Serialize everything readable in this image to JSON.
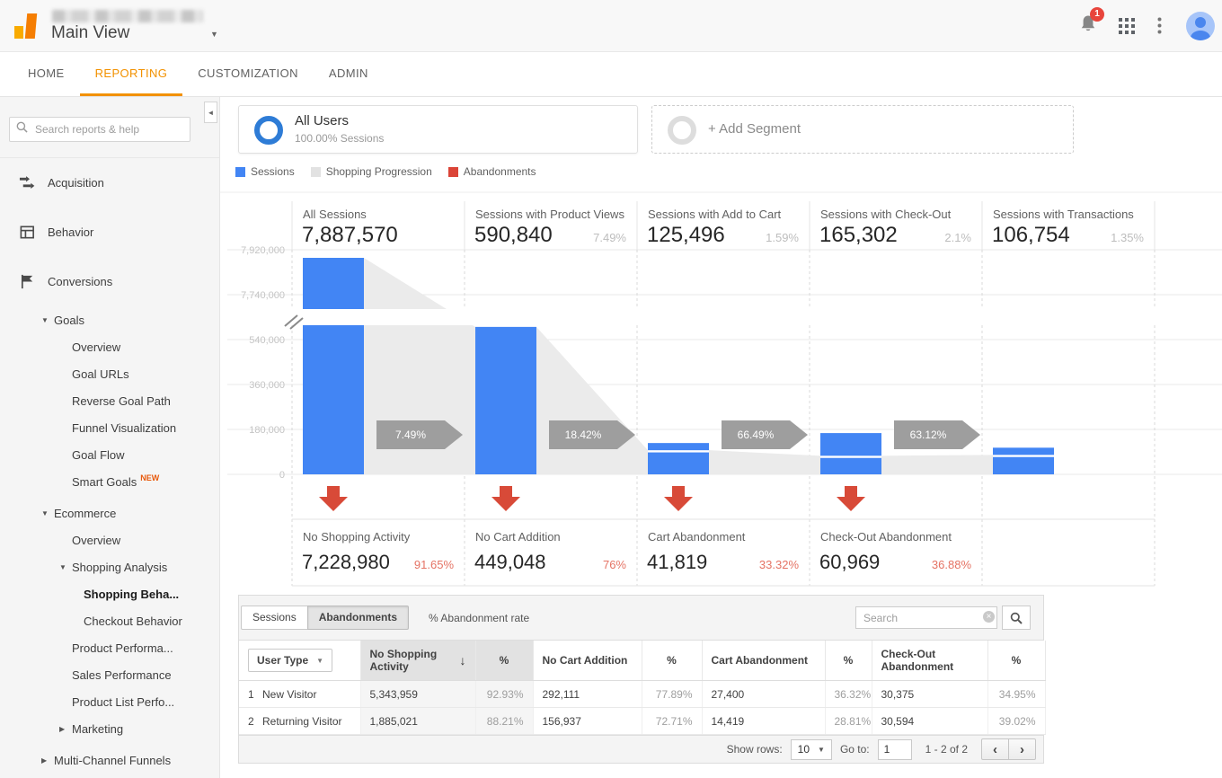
{
  "header": {
    "view_name": "Main View",
    "notifications_badge": "1"
  },
  "nav_tabs": [
    {
      "label": "HOME",
      "active": false
    },
    {
      "label": "REPORTING",
      "active": true
    },
    {
      "label": "CUSTOMIZATION",
      "active": false
    },
    {
      "label": "ADMIN",
      "active": false
    }
  ],
  "sidebar": {
    "search_placeholder": "Search reports & help",
    "items": [
      {
        "label": "Acquisition",
        "level": 0,
        "icon": "acquisition-icon"
      },
      {
        "label": "Behavior",
        "level": 0,
        "icon": "behavior-icon"
      },
      {
        "label": "Conversions",
        "level": 0,
        "icon": "conversions-icon"
      },
      {
        "label": "Goals",
        "level": 1,
        "caret": "down"
      },
      {
        "label": "Overview",
        "level": 2
      },
      {
        "label": "Goal URLs",
        "level": 2
      },
      {
        "label": "Reverse Goal Path",
        "level": 2
      },
      {
        "label": "Funnel Visualization",
        "level": 2
      },
      {
        "label": "Goal Flow",
        "level": 2
      },
      {
        "label": "Smart Goals",
        "level": 2,
        "badge": "NEW"
      },
      {
        "label": "Ecommerce",
        "level": 1,
        "caret": "down",
        "gap_before": true
      },
      {
        "label": "Overview",
        "level": 2
      },
      {
        "label": "Shopping Analysis",
        "level": 2,
        "caret": "down"
      },
      {
        "label": "Shopping Beha...",
        "level": 3,
        "active": true
      },
      {
        "label": "Checkout Behavior",
        "level": 3
      },
      {
        "label": "Product Performa...",
        "level": 2
      },
      {
        "label": "Sales Performance",
        "level": 2
      },
      {
        "label": "Product List Perfo...",
        "level": 2
      },
      {
        "label": "Marketing",
        "level": 2,
        "caret": "right"
      },
      {
        "label": "Multi-Channel Funnels",
        "level": 1,
        "caret": "right",
        "gap_before": true
      }
    ]
  },
  "segments": {
    "all_users_title": "All Users",
    "all_users_subtitle": "100.00% Sessions",
    "add_segment_label": "+ Add Segment"
  },
  "chart_data": {
    "type": "funnel",
    "title": "Shopping Behavior Analysis funnel",
    "legend": [
      {
        "label": "Sessions",
        "color": "#4285f4"
      },
      {
        "label": "Shopping Progression",
        "color": "#e2e2e2"
      },
      {
        "label": "Abandonments",
        "color": "#db4437"
      }
    ],
    "y_ticks": [
      {
        "label": "7,920,000",
        "value": 7920000,
        "axis": "upper"
      },
      {
        "label": "7,740,000",
        "value": 7740000,
        "axis": "upper"
      },
      {
        "label": "540,000",
        "value": 540000,
        "axis": "lower"
      },
      {
        "label": "360,000",
        "value": 360000,
        "axis": "lower"
      },
      {
        "label": "180,000",
        "value": 180000,
        "axis": "lower"
      },
      {
        "label": "0",
        "value": 0,
        "axis": "lower"
      }
    ],
    "axis_break": true,
    "steps": [
      {
        "label": "All Sessions",
        "value": 7887570,
        "display": "7,887,570",
        "pct_of_all": ""
      },
      {
        "label": "Sessions with Product Views",
        "value": 590840,
        "display": "590,840",
        "pct_of_all": "7.49%"
      },
      {
        "label": "Sessions with Add to Cart",
        "value": 125496,
        "display": "125,496",
        "pct_of_all": "1.59%"
      },
      {
        "label": "Sessions with Check-Out",
        "value": 165302,
        "display": "165,302",
        "pct_of_all": "2.1%"
      },
      {
        "label": "Sessions with Transactions",
        "value": 106754,
        "display": "106,754",
        "pct_of_all": "1.35%"
      }
    ],
    "proceed_rates": [
      "7.49%",
      "18.42%",
      "66.49%",
      "63.12%"
    ],
    "abandonments": [
      {
        "label": "No Shopping Activity",
        "display": "7,228,980",
        "pct": "91.65%"
      },
      {
        "label": "No Cart Addition",
        "display": "449,048",
        "pct": "76%"
      },
      {
        "label": "Cart Abandonment",
        "display": "41,819",
        "pct": "33.32%"
      },
      {
        "label": "Check-Out Abandonment",
        "display": "60,969",
        "pct": "36.88%"
      }
    ],
    "colors": {
      "bar": "#4285f4",
      "progression": "#ebebeb",
      "arrow": "#9e9e9e",
      "abandon_arrow": "#d84a38",
      "abandon_pct": "#e57364"
    }
  },
  "table": {
    "tabs": [
      {
        "label": "Sessions",
        "active": false
      },
      {
        "label": "Abandonments",
        "active": true
      }
    ],
    "mode_label": "% Abandonment rate",
    "search_placeholder": "Search",
    "dimension_label": "User Type",
    "columns": [
      {
        "label": "No Shopping Activity",
        "sorted": true
      },
      {
        "label": "%",
        "sorted": true
      },
      {
        "label": "No Cart Addition"
      },
      {
        "label": "%"
      },
      {
        "label": "Cart Abandonment"
      },
      {
        "label": "%"
      },
      {
        "label": "Check-Out Abandonment"
      },
      {
        "label": "%"
      }
    ],
    "rows": [
      {
        "index": "1",
        "name": "New Visitor",
        "cells": [
          "5,343,959",
          "92.93%",
          "292,111",
          "77.89%",
          "27,400",
          "36.32%",
          "30,375",
          "34.95%"
        ]
      },
      {
        "index": "2",
        "name": "Returning Visitor",
        "cells": [
          "1,885,021",
          "88.21%",
          "156,937",
          "72.71%",
          "14,419",
          "28.81%",
          "30,594",
          "39.02%"
        ]
      }
    ],
    "footer": {
      "show_rows_label": "Show rows:",
      "show_rows_value": "10",
      "goto_label": "Go to:",
      "goto_value": "1",
      "range_label": "1 - 2 of 2"
    }
  },
  "icons": {
    "caret_down": "▼",
    "caret_right": "▶",
    "sort_desc": "↓",
    "prev": "‹",
    "next": "›",
    "clear": "×",
    "collapse": "◄"
  }
}
